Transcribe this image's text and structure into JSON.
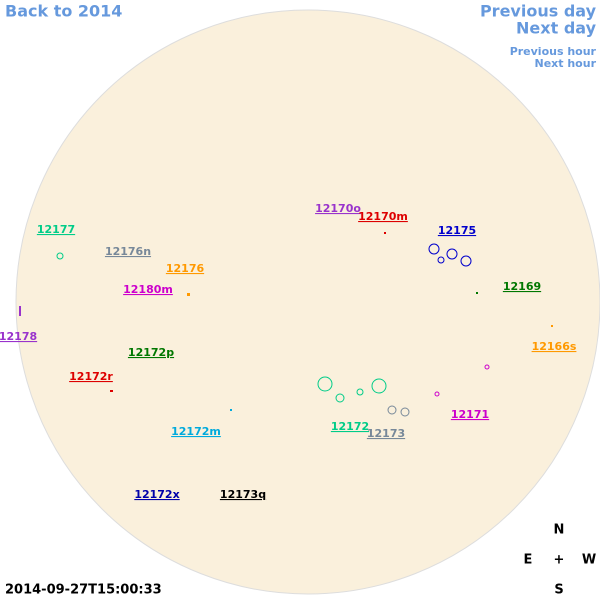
{
  "nav": {
    "back": "Back to 2014",
    "previous_day": "Previous day",
    "next_day": "Next day",
    "previous_hour": "Previous hour",
    "next_hour": "Next hour"
  },
  "regions": [
    {
      "label": "12177",
      "color": "#00cc88"
    },
    {
      "label": "12176n",
      "color": "#778899"
    },
    {
      "label": "12176",
      "color": "#ff9900"
    },
    {
      "label": "12180m",
      "color": "#cc00cc"
    },
    {
      "label": "12178",
      "color": "#9933cc"
    },
    {
      "label": "12172p",
      "color": "#007700"
    },
    {
      "label": "12172r",
      "color": "#dd0000"
    },
    {
      "label": "12172m",
      "color": "#00aadd"
    },
    {
      "label": "12172x",
      "color": "#0000aa"
    },
    {
      "label": "12173q",
      "color": "#000000"
    },
    {
      "label": "12170o",
      "color": "#9933cc"
    },
    {
      "label": "12170m",
      "color": "#dd0000"
    },
    {
      "label": "12175",
      "color": "#0000cc"
    },
    {
      "label": "12169",
      "color": "#007700"
    },
    {
      "label": "12166s",
      "color": "#ff9900"
    },
    {
      "label": "12172",
      "color": "#00cc88"
    },
    {
      "label": "12173",
      "color": "#778899"
    },
    {
      "label": "12171",
      "color": "#cc00cc"
    }
  ],
  "compass": {
    "north": "N",
    "east": "E",
    "center": "+",
    "west": "W",
    "south": "S"
  },
  "timestamp": "2014-09-27T15:00:33"
}
